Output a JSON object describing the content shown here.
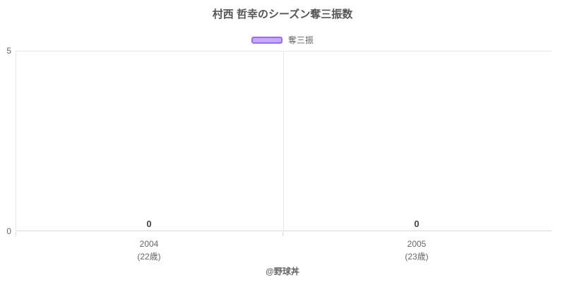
{
  "chart_data": {
    "type": "bar",
    "title": "村西 哲幸のシーズン奪三振数",
    "categories": [
      "2004 (22歳)",
      "2005 (23歳)"
    ],
    "series": [
      {
        "name": "奪三振",
        "values": [
          0,
          0
        ]
      }
    ],
    "ylim": [
      0,
      5
    ],
    "xlabel": "",
    "ylabel": "",
    "grid": true,
    "legend_position": "top",
    "data_labels": [
      0,
      0
    ],
    "bar_color": "#c8a8f8",
    "bar_border_color": "#9b6df5"
  },
  "title": "村西 哲幸のシーズン奪三振数",
  "legend": {
    "label": "奪三振",
    "swatch_fill": "#c8a8f8",
    "swatch_border": "#9b6df5"
  },
  "y_axis": {
    "max_label": "5",
    "min_label": "0"
  },
  "x_axis": {
    "categories": [
      {
        "year": "2004",
        "age": "(22歳)",
        "value_label": "0"
      },
      {
        "year": "2005",
        "age": "(23歳)",
        "value_label": "0"
      }
    ]
  },
  "footer": {
    "credit": "@野球丼"
  },
  "colors": {
    "title": "#555555",
    "axis_label": "#666666",
    "value_label": "#444444",
    "grid_line": "#e6e6e6",
    "axis_line": "#d8d8d8"
  }
}
